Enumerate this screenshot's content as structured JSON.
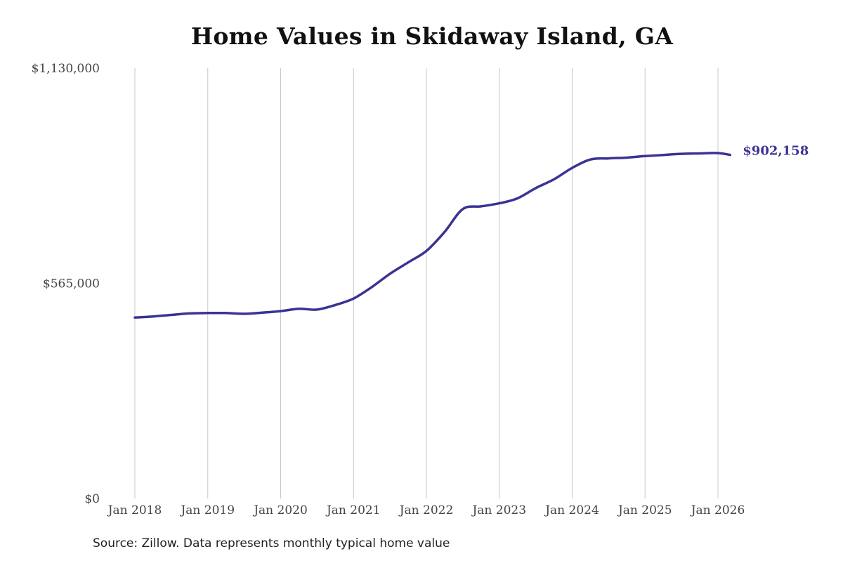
{
  "title": "Home Values in Skidaway Island, GA",
  "source": "Source: Zillow. Data represents monthly typical home value",
  "colors": {
    "line": "#3a3393",
    "grid": "#c8c8c8",
    "end_label": "#3a3393"
  },
  "chart_data": {
    "type": "line",
    "title": "Home Values in Skidaway Island, GA",
    "xlabel": "",
    "ylabel": "",
    "ylim": [
      0,
      1130000
    ],
    "y_ticks": [
      0,
      565000,
      1130000
    ],
    "y_tick_labels": [
      "$0",
      "$565,000",
      "$1,130,000"
    ],
    "x_ticks": [
      "2018-01",
      "2019-01",
      "2020-01",
      "2021-01",
      "2022-01",
      "2023-01",
      "2024-01",
      "2025-01",
      "2026-01"
    ],
    "x_tick_labels": [
      "Jan 2018",
      "Jan 2019",
      "Jan 2020",
      "Jan 2021",
      "Jan 2022",
      "Jan 2023",
      "Jan 2024",
      "Jan 2025",
      "Jan 2026"
    ],
    "grid": "vertical",
    "end_label": "$902,158",
    "series": [
      {
        "x": [
          "2018-01",
          "2018-04",
          "2018-07",
          "2018-10",
          "2019-01",
          "2019-04",
          "2019-07",
          "2019-10",
          "2020-01",
          "2020-04",
          "2020-07",
          "2020-10",
          "2021-01",
          "2021-04",
          "2021-07",
          "2021-10",
          "2022-01",
          "2022-04",
          "2022-07",
          "2022-10",
          "2023-01",
          "2023-04",
          "2023-07",
          "2023-10",
          "2024-01",
          "2024-04",
          "2024-07",
          "2024-10",
          "2025-01",
          "2025-04",
          "2025-07",
          "2025-10",
          "2026-01",
          "2026-03"
        ],
        "values": [
          475000,
          478000,
          482000,
          486000,
          487000,
          487000,
          485000,
          488000,
          492000,
          498000,
          496000,
          508000,
          525000,
          555000,
          590000,
          620000,
          650000,
          700000,
          760000,
          767000,
          775000,
          788000,
          815000,
          838000,
          868000,
          890000,
          893000,
          895000,
          899000,
          902000,
          905000,
          906000,
          907000,
          902158
        ]
      }
    ]
  }
}
